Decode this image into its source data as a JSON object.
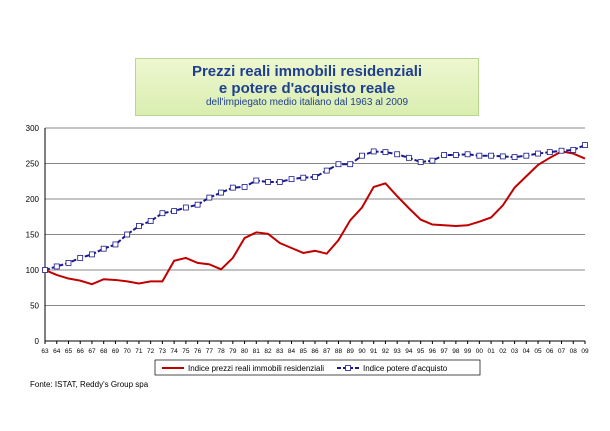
{
  "chart_data": {
    "type": "line",
    "title": "Prezzi reali immobili residenziali",
    "title_line2": "e potere d'acquisto reale",
    "subtitle": "dell'impiegato medio italiano dal 1963 al 2009",
    "xlabel": "",
    "ylabel": "",
    "ylim": [
      0,
      300
    ],
    "yticks": [
      "0",
      "50",
      "100",
      "150",
      "200",
      "250",
      "300"
    ],
    "grid": true,
    "legend": "bottom",
    "categories": [
      "63",
      "64",
      "65",
      "66",
      "67",
      "68",
      "69",
      "70",
      "71",
      "72",
      "73",
      "74",
      "75",
      "76",
      "77",
      "78",
      "79",
      "80",
      "81",
      "82",
      "83",
      "84",
      "85",
      "86",
      "87",
      "88",
      "89",
      "90",
      "91",
      "92",
      "93",
      "94",
      "95",
      "96",
      "97",
      "98",
      "99",
      "00",
      "01",
      "02",
      "03",
      "04",
      "05",
      "06",
      "07",
      "08",
      "09"
    ],
    "series": [
      {
        "name": "Indice prezzi reali immobili residenziali",
        "color": "#c00000",
        "style": "solid",
        "values": [
          100,
          93,
          88,
          85,
          80,
          87,
          86,
          84,
          81,
          84,
          84,
          113,
          117,
          110,
          108,
          101,
          117,
          145,
          153,
          151,
          138,
          131,
          124,
          127,
          123,
          142,
          170,
          188,
          217,
          222,
          204,
          187,
          171,
          164,
          163,
          162,
          163,
          168,
          174,
          191,
          216,
          232,
          248,
          258,
          267,
          264,
          257
        ]
      },
      {
        "name": "Indice potere d'acquisto",
        "color": "#1a1a8c",
        "style": "dashed-square-markers",
        "values": [
          100,
          105,
          110,
          117,
          122,
          130,
          136,
          150,
          162,
          169,
          180,
          183,
          188,
          192,
          202,
          209,
          216,
          217,
          226,
          224,
          224,
          228,
          230,
          231,
          240,
          249,
          249,
          261,
          267,
          266,
          263,
          258,
          252,
          254,
          262,
          262,
          263,
          261,
          261,
          260,
          259,
          261,
          264,
          266,
          268,
          269,
          276
        ]
      }
    ]
  },
  "source": "Fonte: ISTAT, Reddy's Group spa"
}
